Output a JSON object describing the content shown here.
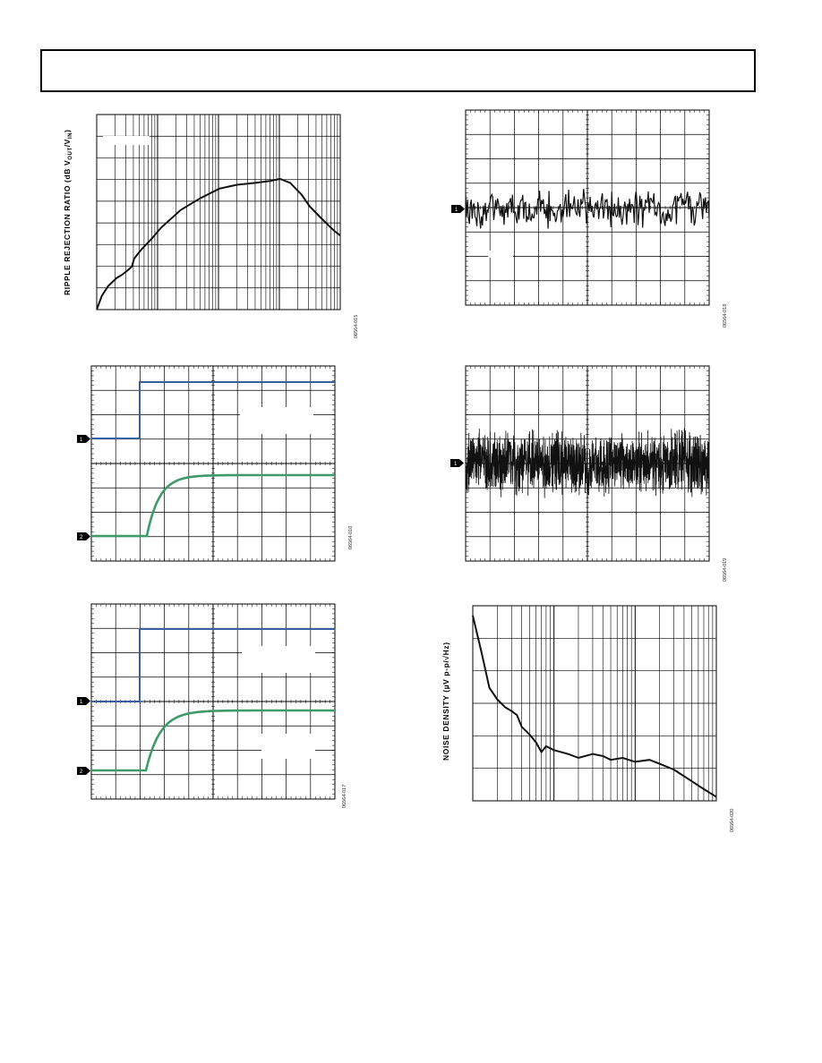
{
  "header": {
    "title": ""
  },
  "colors": {
    "grid": "#000000",
    "trace_black": "#111111",
    "trace_blue": "#3a5f9e",
    "trace_green": "#3f9a6a",
    "marker": "#000000"
  },
  "chart_data": [
    {
      "id": "ripple",
      "type": "line",
      "xscale": "log",
      "ylabel": "RIPPLE REJECTION RATIO (dB V",
      "ylabel_sub1": "OUT",
      "ylabel_mid": "/V",
      "ylabel_sub2": "IN",
      "ylabel_end": ")",
      "figure_id": "06564-015",
      "x": [
        1,
        1.2,
        1.5,
        2,
        2.5,
        3,
        3.5,
        3.8,
        4.2,
        5,
        7,
        10,
        20,
        40,
        80,
        150,
        300,
        500,
        700,
        1000,
        1500,
        2000,
        3000,
        4000,
        5000,
        6000
      ],
      "values": [
        0,
        0.07,
        0.12,
        0.16,
        0.18,
        0.2,
        0.22,
        0.26,
        0.28,
        0.31,
        0.36,
        0.42,
        0.51,
        0.57,
        0.62,
        0.64,
        0.65,
        0.66,
        0.67,
        0.65,
        0.59,
        0.53,
        0.47,
        0.43,
        0.4,
        0.38
      ]
    },
    {
      "id": "noise-low-freq",
      "type": "line",
      "figure_id": "06564-018",
      "markers": [
        "1"
      ]
    },
    {
      "id": "transient-1",
      "type": "line",
      "figure_id": "06564-016",
      "markers": [
        "1",
        "2"
      ]
    },
    {
      "id": "noise-wideband",
      "type": "line",
      "figure_id": "06564-019",
      "markers": [
        "1"
      ]
    },
    {
      "id": "transient-2",
      "type": "line",
      "figure_id": "06564-017",
      "markers": [
        "1",
        "2"
      ]
    },
    {
      "id": "noise-density",
      "type": "line",
      "xscale": "log",
      "ylabel": "NOISE DENSITY (µV p-p/√Hz)",
      "figure_id": "06564-020",
      "x": [
        1,
        1.3,
        1.6,
        2,
        2.5,
        3,
        3.5,
        4,
        5,
        6,
        7,
        8,
        10,
        15,
        20,
        30,
        40,
        50,
        70,
        100,
        150,
        200,
        300,
        500,
        700,
        1000
      ],
      "values": [
        0.95,
        0.75,
        0.58,
        0.52,
        0.48,
        0.46,
        0.44,
        0.38,
        0.34,
        0.3,
        0.25,
        0.28,
        0.26,
        0.24,
        0.22,
        0.24,
        0.23,
        0.21,
        0.22,
        0.2,
        0.21,
        0.19,
        0.16,
        0.1,
        0.06,
        0.02
      ]
    }
  ]
}
